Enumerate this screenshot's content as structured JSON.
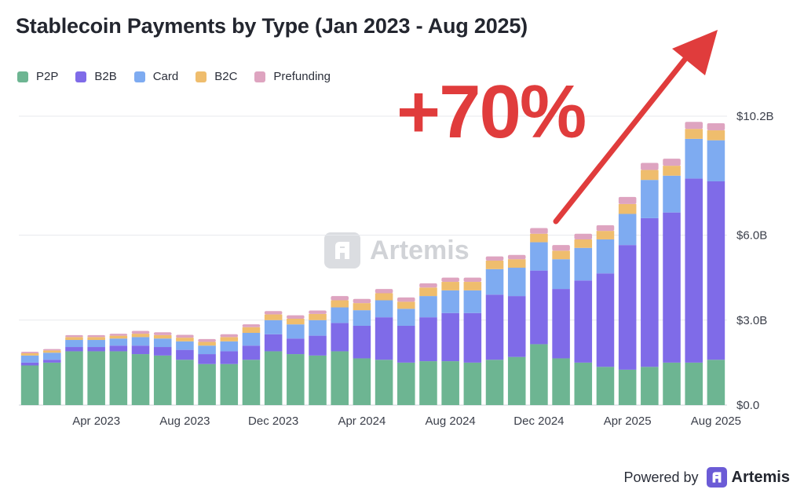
{
  "chart_data": {
    "type": "bar",
    "stacked": true,
    "title": "Stablecoin Payments by Type (Jan 2023 - Aug 2025)",
    "annotation": "+70%",
    "watermark": "Artemis",
    "footer": {
      "powered_by": "Powered by",
      "brand": "Artemis"
    },
    "legend_position": "top-left",
    "grid": true,
    "ylim": [
      0,
      10.2
    ],
    "y_ticks": [
      {
        "value": 0,
        "label": "$0.0"
      },
      {
        "value": 3.0,
        "label": "$3.0B"
      },
      {
        "value": 6.0,
        "label": "$6.0B"
      },
      {
        "value": 10.2,
        "label": "$10.2B"
      }
    ],
    "x_tick_labels": [
      {
        "index": 3,
        "label": "Apr 2023"
      },
      {
        "index": 7,
        "label": "Aug 2023"
      },
      {
        "index": 11,
        "label": "Dec 2023"
      },
      {
        "index": 15,
        "label": "Apr 2024"
      },
      {
        "index": 19,
        "label": "Aug 2024"
      },
      {
        "index": 23,
        "label": "Dec 2024"
      },
      {
        "index": 27,
        "label": "Apr 2025"
      },
      {
        "index": 31,
        "label": "Aug 2025"
      }
    ],
    "categories": [
      "Jan 2023",
      "Feb 2023",
      "Mar 2023",
      "Apr 2023",
      "May 2023",
      "Jun 2023",
      "Jul 2023",
      "Aug 2023",
      "Sep 2023",
      "Oct 2023",
      "Nov 2023",
      "Dec 2023",
      "Jan 2024",
      "Feb 2024",
      "Mar 2024",
      "Apr 2024",
      "May 2024",
      "Jun 2024",
      "Jul 2024",
      "Aug 2024",
      "Sep 2024",
      "Oct 2024",
      "Nov 2024",
      "Dec 2024",
      "Jan 2025",
      "Feb 2025",
      "Mar 2025",
      "Apr 2025",
      "May 2025",
      "Jun 2025",
      "Jul 2025",
      "Aug 2025"
    ],
    "series": [
      {
        "name": "P2P",
        "color": "#6db592",
        "values": [
          1.4,
          1.5,
          1.9,
          1.9,
          1.9,
          1.8,
          1.75,
          1.6,
          1.45,
          1.45,
          1.6,
          1.9,
          1.8,
          1.75,
          1.9,
          1.65,
          1.6,
          1.5,
          1.55,
          1.55,
          1.5,
          1.6,
          1.7,
          2.15,
          1.65,
          1.5,
          1.35,
          1.25,
          1.35,
          1.5,
          1.5,
          1.6
        ]
      },
      {
        "name": "B2B",
        "color": "#7f6be8",
        "values": [
          0.1,
          0.1,
          0.15,
          0.15,
          0.2,
          0.3,
          0.3,
          0.35,
          0.35,
          0.45,
          0.5,
          0.6,
          0.55,
          0.7,
          1.0,
          1.15,
          1.5,
          1.3,
          1.55,
          1.7,
          1.75,
          2.3,
          2.15,
          2.6,
          2.45,
          2.9,
          3.3,
          4.4,
          5.25,
          5.3,
          6.5,
          6.3
        ]
      },
      {
        "name": "Card",
        "color": "#7eabf1",
        "values": [
          0.25,
          0.25,
          0.25,
          0.25,
          0.25,
          0.3,
          0.3,
          0.3,
          0.3,
          0.35,
          0.45,
          0.5,
          0.5,
          0.55,
          0.55,
          0.55,
          0.6,
          0.6,
          0.75,
          0.8,
          0.8,
          0.9,
          1.0,
          1.0,
          1.05,
          1.15,
          1.2,
          1.1,
          1.35,
          1.3,
          1.4,
          1.45
        ]
      },
      {
        "name": "B2C",
        "color": "#efbd6d",
        "values": [
          0.08,
          0.08,
          0.1,
          0.1,
          0.1,
          0.12,
          0.12,
          0.13,
          0.13,
          0.15,
          0.2,
          0.2,
          0.2,
          0.22,
          0.25,
          0.25,
          0.25,
          0.25,
          0.3,
          0.3,
          0.3,
          0.3,
          0.3,
          0.3,
          0.3,
          0.3,
          0.3,
          0.35,
          0.35,
          0.35,
          0.35,
          0.35
        ]
      },
      {
        "name": "Prefunding",
        "color": "#dea4c0",
        "values": [
          0.05,
          0.05,
          0.07,
          0.07,
          0.07,
          0.1,
          0.1,
          0.1,
          0.1,
          0.1,
          0.1,
          0.12,
          0.12,
          0.12,
          0.15,
          0.15,
          0.15,
          0.15,
          0.15,
          0.15,
          0.15,
          0.15,
          0.15,
          0.2,
          0.2,
          0.2,
          0.2,
          0.25,
          0.25,
          0.25,
          0.25,
          0.25
        ]
      }
    ]
  }
}
